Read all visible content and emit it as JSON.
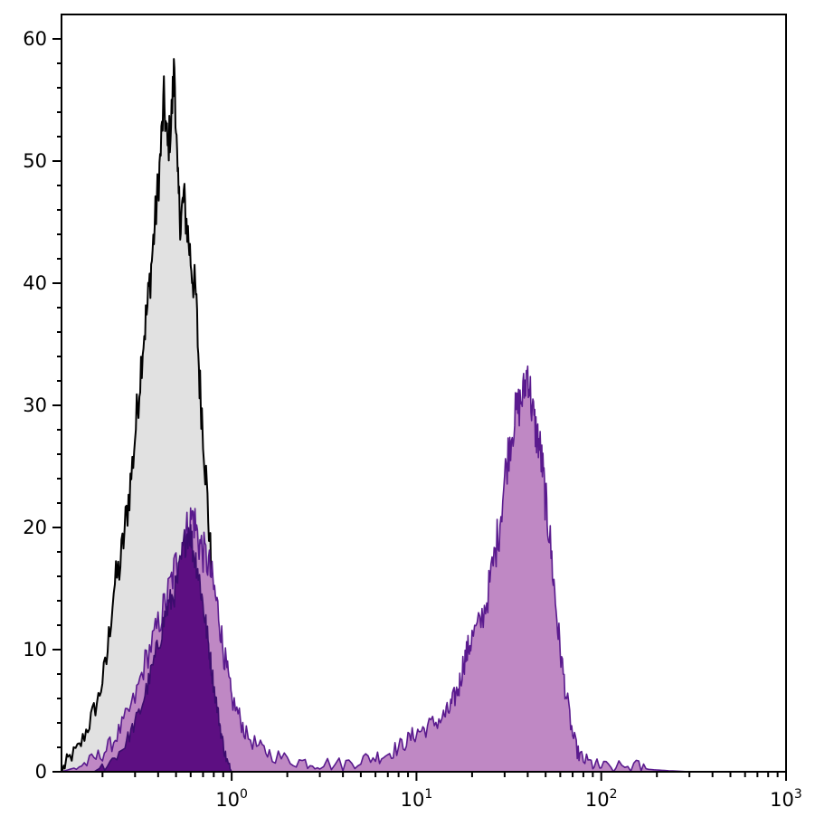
{
  "chart_data": {
    "type": "area",
    "x_scale": "log",
    "xlim": [
      0.12,
      1000
    ],
    "ylim": [
      0,
      62
    ],
    "grid": false,
    "legend": "none",
    "x_ticks": [
      {
        "value": 1,
        "base": "10",
        "exp": "0"
      },
      {
        "value": 10,
        "base": "10",
        "exp": "1"
      },
      {
        "value": 100,
        "base": "10",
        "exp": "2"
      },
      {
        "value": 1000,
        "base": "10",
        "exp": "3"
      }
    ],
    "y_ticks": [
      0,
      10,
      20,
      30,
      40,
      50,
      60
    ],
    "series": [
      {
        "fill": "#e1e1e1",
        "stroke": "#000000",
        "points": [
          [
            0.12,
            0
          ],
          [
            0.13,
            1
          ],
          [
            0.15,
            2
          ],
          [
            0.17,
            4
          ],
          [
            0.19,
            6
          ],
          [
            0.21,
            9
          ],
          [
            0.23,
            15
          ],
          [
            0.25,
            17
          ],
          [
            0.27,
            21
          ],
          [
            0.29,
            25
          ],
          [
            0.31,
            30
          ],
          [
            0.33,
            35
          ],
          [
            0.35,
            38
          ],
          [
            0.37,
            42
          ],
          [
            0.39,
            46
          ],
          [
            0.41,
            50
          ],
          [
            0.43,
            55
          ],
          [
            0.45,
            51
          ],
          [
            0.47,
            53
          ],
          [
            0.49,
            58
          ],
          [
            0.51,
            48
          ],
          [
            0.53,
            45
          ],
          [
            0.55,
            47
          ],
          [
            0.58,
            44
          ],
          [
            0.61,
            41
          ],
          [
            0.64,
            39
          ],
          [
            0.67,
            32
          ],
          [
            0.7,
            28
          ],
          [
            0.74,
            22
          ],
          [
            0.78,
            16
          ],
          [
            0.82,
            10
          ],
          [
            0.87,
            5
          ],
          [
            0.93,
            2
          ],
          [
            1.0,
            0.8
          ],
          [
            1.1,
            0.2
          ],
          [
            1.2,
            0
          ]
        ]
      },
      {
        "fill": "#bf88c4",
        "stroke": "#5a1a8e",
        "points": [
          [
            0.12,
            0
          ],
          [
            0.14,
            0.3
          ],
          [
            0.17,
            0.8
          ],
          [
            0.2,
            1.5
          ],
          [
            0.23,
            2.5
          ],
          [
            0.26,
            4
          ],
          [
            0.3,
            6
          ],
          [
            0.34,
            9
          ],
          [
            0.38,
            11
          ],
          [
            0.42,
            13
          ],
          [
            0.46,
            15
          ],
          [
            0.5,
            17
          ],
          [
            0.54,
            18
          ],
          [
            0.58,
            20
          ],
          [
            0.62,
            21
          ],
          [
            0.66,
            19
          ],
          [
            0.7,
            18
          ],
          [
            0.75,
            17
          ],
          [
            0.8,
            15
          ],
          [
            0.85,
            13
          ],
          [
            0.9,
            10
          ],
          [
            0.95,
            8
          ],
          [
            1.0,
            6
          ],
          [
            1.1,
            4.5
          ],
          [
            1.2,
            3
          ],
          [
            1.4,
            2
          ],
          [
            1.6,
            1.5
          ],
          [
            2.0,
            1
          ],
          [
            2.5,
            0.8
          ],
          [
            3.0,
            0.7
          ],
          [
            4.0,
            0.6
          ],
          [
            5.0,
            1
          ],
          [
            6.0,
            1.2
          ],
          [
            7.0,
            1.5
          ],
          [
            8.0,
            2
          ],
          [
            9.0,
            2.6
          ],
          [
            10.0,
            3.2
          ],
          [
            11.0,
            3.5
          ],
          [
            12.5,
            4
          ],
          [
            14,
            4.5
          ],
          [
            15,
            5
          ],
          [
            16,
            6
          ],
          [
            17,
            7
          ],
          [
            18,
            9
          ],
          [
            19,
            10
          ],
          [
            20,
            11
          ],
          [
            22,
            12
          ],
          [
            24,
            14
          ],
          [
            26,
            17
          ],
          [
            28,
            20
          ],
          [
            30,
            24
          ],
          [
            32,
            27
          ],
          [
            34,
            29
          ],
          [
            36,
            30
          ],
          [
            38,
            31
          ],
          [
            40,
            33
          ],
          [
            42,
            30
          ],
          [
            44,
            28
          ],
          [
            46,
            27
          ],
          [
            48,
            25
          ],
          [
            50,
            22
          ],
          [
            52,
            20
          ],
          [
            55,
            16
          ],
          [
            58,
            12
          ],
          [
            61,
            9
          ],
          [
            65,
            6
          ],
          [
            70,
            3
          ],
          [
            75,
            1.5
          ],
          [
            80,
            1
          ],
          [
            90,
            0.6
          ],
          [
            100,
            0.4
          ],
          [
            120,
            0.3
          ],
          [
            150,
            0.5
          ],
          [
            180,
            0.2
          ],
          [
            220,
            0.1
          ],
          [
            300,
            0
          ]
        ]
      },
      {
        "fill": "#5d0f82",
        "stroke": "#3c0c6e",
        "points": [
          [
            0.18,
            0
          ],
          [
            0.22,
            0.8
          ],
          [
            0.26,
            2
          ],
          [
            0.29,
            3.5
          ],
          [
            0.32,
            5
          ],
          [
            0.35,
            7
          ],
          [
            0.38,
            9
          ],
          [
            0.41,
            11
          ],
          [
            0.44,
            13
          ],
          [
            0.47,
            14
          ],
          [
            0.5,
            15
          ],
          [
            0.53,
            17
          ],
          [
            0.56,
            19
          ],
          [
            0.59,
            20
          ],
          [
            0.62,
            18
          ],
          [
            0.65,
            17
          ],
          [
            0.68,
            15
          ],
          [
            0.71,
            13
          ],
          [
            0.74,
            11
          ],
          [
            0.77,
            9
          ],
          [
            0.8,
            7
          ],
          [
            0.84,
            5
          ],
          [
            0.88,
            3
          ],
          [
            0.92,
            1.5
          ],
          [
            0.96,
            0.5
          ],
          [
            1.0,
            0
          ]
        ]
      }
    ]
  }
}
